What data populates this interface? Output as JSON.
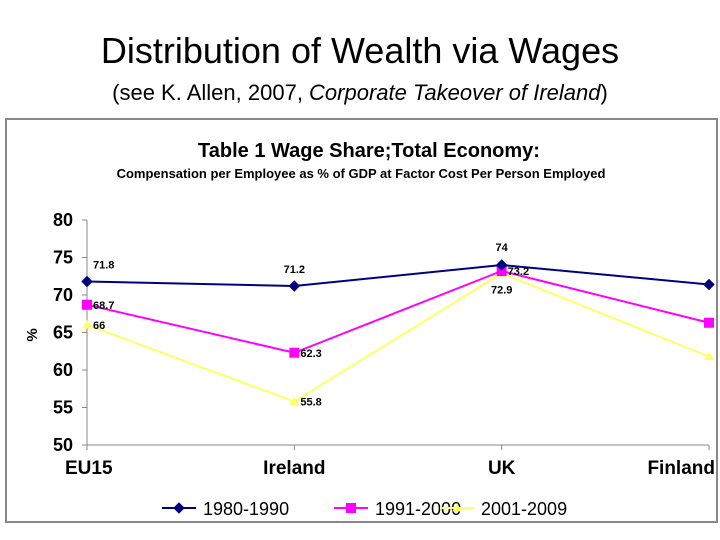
{
  "slide": {
    "title": "Distribution of Wealth via Wages",
    "subtitle_prefix": "(see K. Allen, 2007, ",
    "subtitle_italic": "Corporate Takeover of Ireland",
    "subtitle_suffix": ")"
  },
  "chart_data": {
    "type": "line",
    "title": "Table 1 Wage Share;Total Economy:",
    "subtitle": "Compensation per Employee as % of GDP at Factor Cost Per Person Employed",
    "ylabel": "%",
    "xlabel": "",
    "ylim": [
      50,
      80
    ],
    "yticks": [
      50,
      55,
      60,
      65,
      70,
      75,
      80
    ],
    "categories": [
      "EU15",
      "Ireland",
      "UK",
      "Finland"
    ],
    "grid": false,
    "legend_position": "bottom",
    "series": [
      {
        "name": "1980-1990",
        "values": [
          71.8,
          71.2,
          74,
          71.4
        ],
        "labels": [
          "71.8",
          "71.2",
          "74",
          "71.4"
        ],
        "color": "#000080",
        "marker": "diamond"
      },
      {
        "name": "1991-2000",
        "values": [
          68.7,
          62.3,
          73.2,
          66.3
        ],
        "labels": [
          "68.7",
          "62.3",
          "73.2",
          "66.3"
        ],
        "color": "#ff00ff",
        "marker": "square"
      },
      {
        "name": "2001-2009",
        "values": [
          66,
          55.8,
          72.9,
          61.8
        ],
        "labels": [
          "66",
          "55.8",
          "72.9",
          "61.8"
        ],
        "color": "#ffff66",
        "marker": "triangle"
      }
    ]
  }
}
